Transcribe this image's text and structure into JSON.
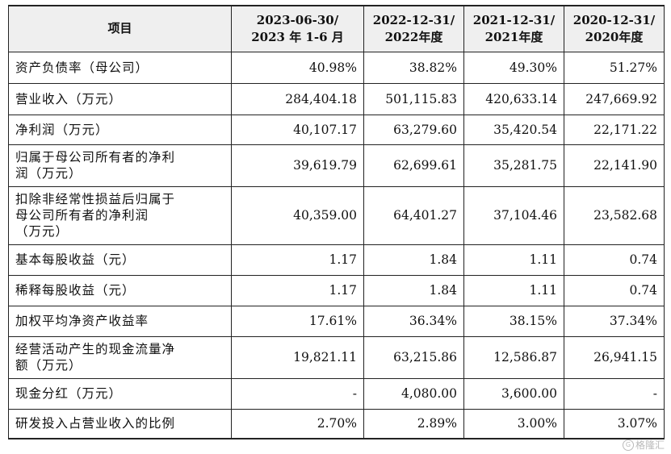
{
  "table": {
    "headers": [
      [
        "项目"
      ],
      [
        "2023-06-30/",
        "2023 年 1-6 月"
      ],
      [
        "2022-12-31/",
        "2022年度"
      ],
      [
        "2021-12-31/",
        "2021年度"
      ],
      [
        "2020-12-31/",
        "2020年度"
      ]
    ],
    "rows": [
      {
        "label": [
          "资产负债率（母公司）"
        ],
        "values": [
          "40.98%",
          "38.82%",
          "49.30%",
          "51.27%"
        ]
      },
      {
        "label": [
          "营业收入（万元）"
        ],
        "values": [
          "284,404.18",
          "501,115.83",
          "420,633.14",
          "247,669.92"
        ]
      },
      {
        "label": [
          "净利润（万元）"
        ],
        "values": [
          "40,107.17",
          "63,279.60",
          "35,420.54",
          "22,171.22"
        ]
      },
      {
        "label": [
          "归属于母公司所有者的净利",
          "润（万元）"
        ],
        "values": [
          "39,619.79",
          "62,699.61",
          "35,281.75",
          "22,141.90"
        ]
      },
      {
        "label": [
          "扣除非经常性损益后归属于",
          "母公司所有者的净利润",
          "（万元）"
        ],
        "values": [
          "40,359.00",
          "64,401.27",
          "37,104.46",
          "23,582.68"
        ]
      },
      {
        "label": [
          "基本每股收益（元）"
        ],
        "values": [
          "1.17",
          "1.84",
          "1.11",
          "0.74"
        ]
      },
      {
        "label": [
          "稀释每股收益（元）"
        ],
        "values": [
          "1.17",
          "1.84",
          "1.11",
          "0.74"
        ]
      },
      {
        "label": [
          "加权平均净资产收益率"
        ],
        "values": [
          "17.61%",
          "36.34%",
          "38.15%",
          "37.34%"
        ]
      },
      {
        "label": [
          "经营活动产生的现金流量净",
          "额（万元）"
        ],
        "values": [
          "19,821.11",
          "63,215.86",
          "12,586.87",
          "26,941.15"
        ]
      },
      {
        "label": [
          "现金分红（万元）"
        ],
        "values": [
          "-",
          "4,080.00",
          "3,600.00",
          "-"
        ]
      },
      {
        "label": [
          "研发投入占营业收入的比例"
        ],
        "values": [
          "2.70%",
          "2.89%",
          "3.00%",
          "3.07%"
        ]
      }
    ]
  },
  "watermark": {
    "text": "格隆汇",
    "logo": "G"
  }
}
